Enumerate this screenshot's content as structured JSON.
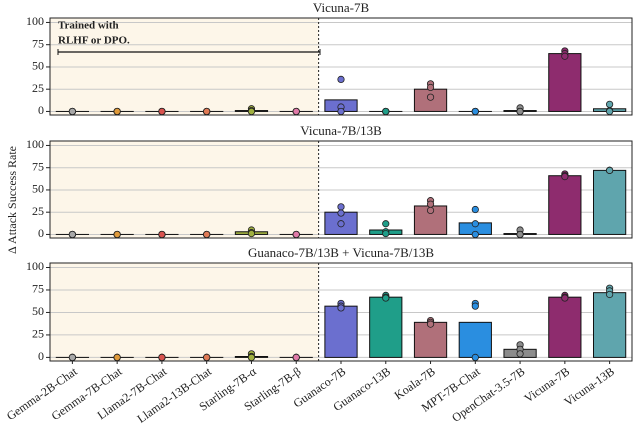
{
  "y_label": "Δ Attack Success Rate",
  "annotation": [
    "Trained with",
    "RLHF or DPO."
  ],
  "categories": [
    "Gemma-2B-Chat",
    "Gemma-7B-Chat",
    "Llama2-7B-Chat",
    "Llama2-13B-Chat",
    "Starling-7B-α",
    "Starling-7B-β",
    "Guanaco-7B",
    "Guanaco-13B",
    "Koala-7B",
    "MPT-7B-Chat",
    "OpenChat-3.5-7B",
    "Vicuna-7B",
    "Vicuna-13B"
  ],
  "colors": [
    "#a8a8a8",
    "#e09a3a",
    "#d9534f",
    "#e07a55",
    "#a0b040",
    "#e07aa8",
    "#6b6fcf",
    "#1f9e89",
    "#b0707a",
    "#2a8ee0",
    "#8c8c8c",
    "#8e2c6e",
    "#5fa5ad"
  ],
  "chart_data": [
    {
      "type": "bar",
      "title": "Vicuna-7B",
      "ylim": [
        -4,
        105
      ],
      "yticks": [
        0,
        25,
        50,
        75,
        100
      ],
      "grid": true,
      "values": [
        0,
        0,
        0,
        0,
        1,
        0,
        13,
        0,
        25,
        0,
        1,
        65,
        3
      ],
      "points": [
        [
          0,
          0,
          0
        ],
        [
          0,
          0,
          0
        ],
        [
          0,
          0,
          0
        ],
        [
          0,
          0,
          0
        ],
        [
          3,
          1,
          0
        ],
        [
          0,
          0,
          0
        ],
        [
          36,
          5,
          0
        ],
        [
          0,
          0,
          0
        ],
        [
          31,
          27,
          16
        ],
        [
          0,
          0,
          0
        ],
        [
          4,
          0,
          0
        ],
        [
          68,
          65,
          62
        ],
        [
          8,
          1,
          0
        ]
      ]
    },
    {
      "type": "bar",
      "title": "Vicuna-7B/13B",
      "ylim": [
        -4,
        105
      ],
      "yticks": [
        0,
        25,
        50,
        75,
        100
      ],
      "grid": true,
      "values": [
        0,
        0,
        0,
        0,
        3,
        0,
        25,
        5,
        32,
        13,
        1,
        66,
        72
      ],
      "points": [
        [
          0,
          0,
          0
        ],
        [
          0,
          0,
          0
        ],
        [
          0,
          0,
          0
        ],
        [
          0,
          0,
          0
        ],
        [
          5,
          2,
          1
        ],
        [
          0,
          0,
          0
        ],
        [
          31,
          24,
          12
        ],
        [
          12,
          3,
          1
        ],
        [
          38,
          34,
          27
        ],
        [
          28,
          12,
          0
        ],
        [
          5,
          0,
          0
        ],
        [
          68,
          66,
          65
        ],
        [
          72,
          72,
          72
        ]
      ]
    },
    {
      "type": "bar",
      "title": "Guanaco-7B/13B + Vicuna-7B/13B",
      "ylim": [
        -4,
        105
      ],
      "yticks": [
        0,
        25,
        50,
        75,
        100
      ],
      "grid": true,
      "values": [
        0,
        0,
        0,
        0,
        1,
        0,
        57,
        67,
        39,
        39,
        9,
        67,
        72
      ],
      "points": [
        [
          0,
          0,
          0
        ],
        [
          0,
          0,
          0
        ],
        [
          0,
          0,
          0
        ],
        [
          0,
          0,
          0
        ],
        [
          4,
          1,
          0
        ],
        [
          0,
          0,
          0
        ],
        [
          60,
          57,
          55
        ],
        [
          69,
          67,
          66
        ],
        [
          41,
          39,
          37
        ],
        [
          60,
          57,
          0
        ],
        [
          14,
          9,
          4
        ],
        [
          69,
          67,
          66
        ],
        [
          77,
          74,
          70
        ]
      ]
    }
  ]
}
